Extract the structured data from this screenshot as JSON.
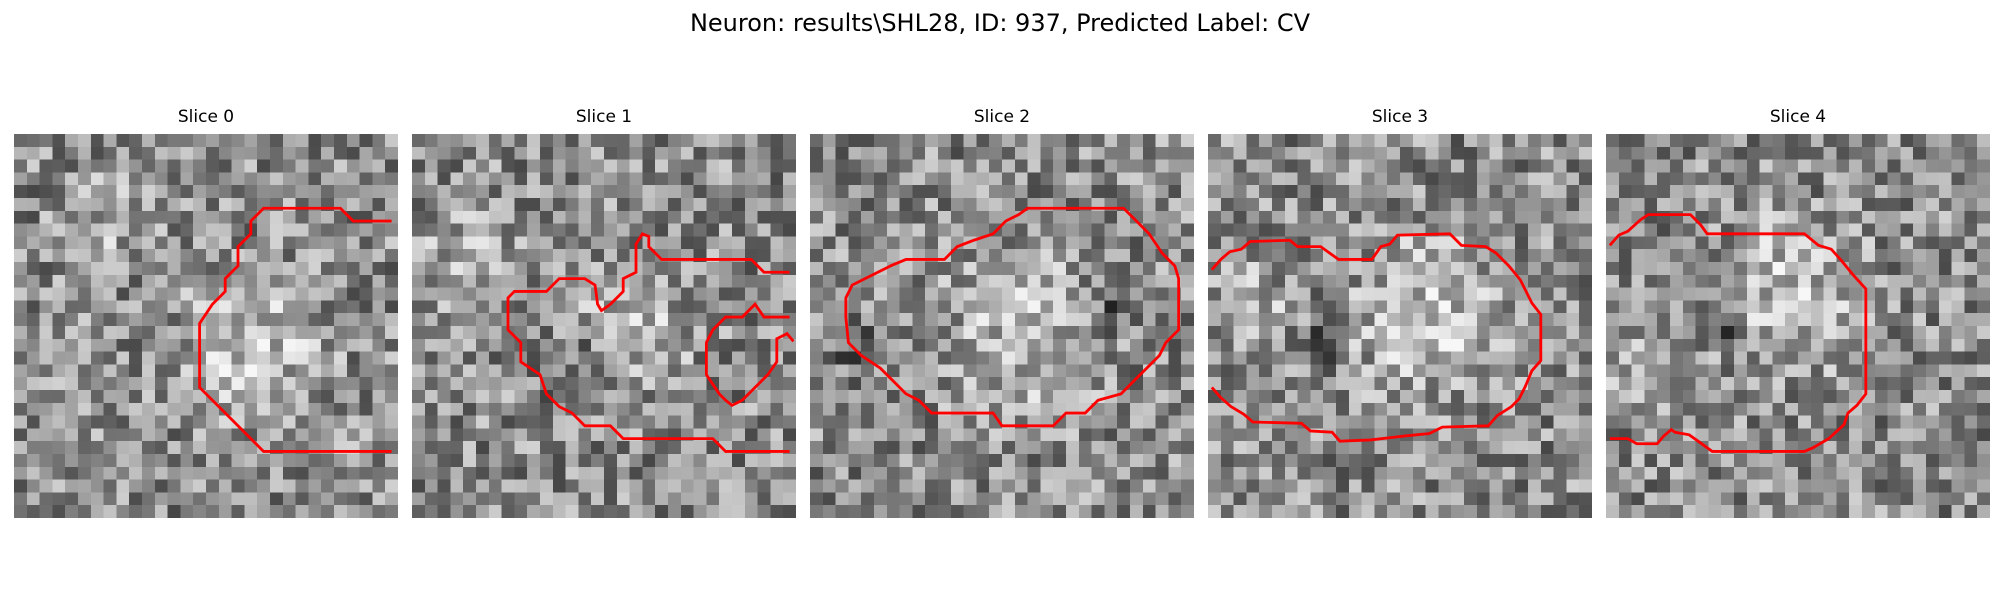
{
  "title": "Neuron: results\\SHL28, ID: 937, Predicted Label: CV",
  "panels": [
    {
      "label": "Slice 0",
      "seed": 11,
      "blobs": [
        [
          0.62,
          0.55,
          0.28,
          0.22
        ],
        [
          0.25,
          0.22,
          0.18,
          0.15
        ],
        [
          0.85,
          0.85,
          0.14,
          0.12
        ]
      ]
    },
    {
      "label": "Slice 1",
      "seed": 23,
      "blobs": [
        [
          0.55,
          0.5,
          0.25,
          0.2
        ],
        [
          0.15,
          0.35,
          0.2,
          0.18
        ],
        [
          0.45,
          0.6,
          0.16,
          -0.2
        ]
      ]
    },
    {
      "label": "Slice 2",
      "seed": 37,
      "blobs": [
        [
          0.55,
          0.52,
          0.32,
          0.2
        ],
        [
          0.12,
          0.55,
          0.12,
          -0.2
        ],
        [
          0.78,
          0.45,
          0.1,
          -0.22
        ]
      ]
    },
    {
      "label": "Slice 3",
      "seed": 41,
      "blobs": [
        [
          0.58,
          0.48,
          0.3,
          0.24
        ],
        [
          0.1,
          0.45,
          0.15,
          0.2
        ],
        [
          0.28,
          0.55,
          0.08,
          -0.32
        ]
      ]
    },
    {
      "label": "Slice 4",
      "seed": 53,
      "blobs": [
        [
          0.48,
          0.42,
          0.28,
          0.24
        ],
        [
          0.1,
          0.6,
          0.14,
          0.18
        ],
        [
          0.3,
          0.5,
          0.08,
          -0.3
        ]
      ]
    }
  ],
  "contour_color": "#ff0000"
}
